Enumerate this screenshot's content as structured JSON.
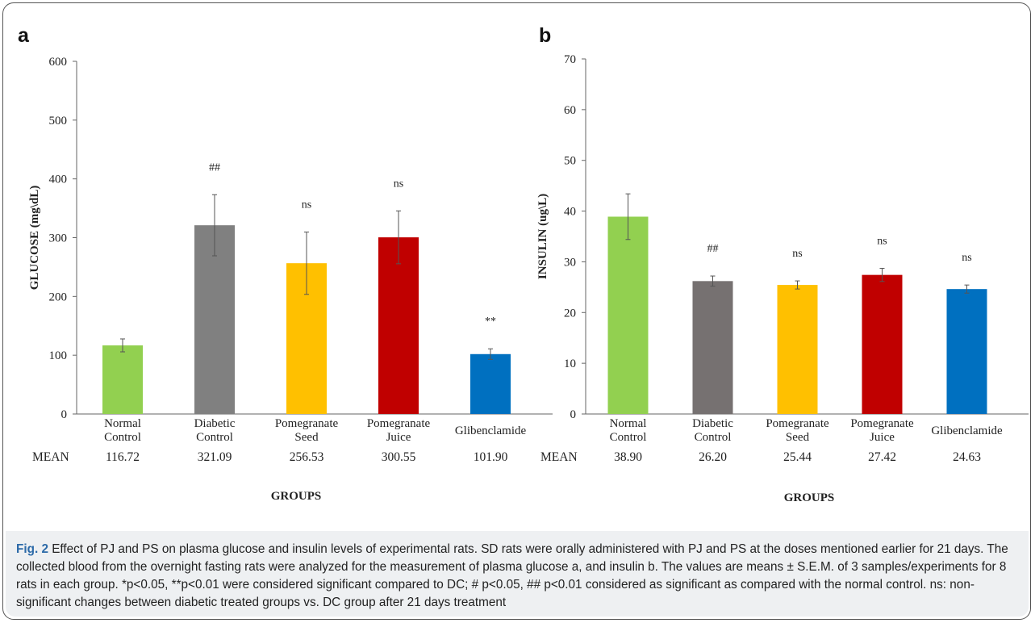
{
  "chart_data": [
    {
      "type": "bar",
      "panel": "a",
      "categories": [
        [
          "Normal",
          "Control"
        ],
        [
          "Diabetic",
          "Control"
        ],
        [
          "Pomegranate",
          "Seed"
        ],
        [
          "Pomegranate",
          "Juice"
        ],
        [
          "Glibenclamide"
        ]
      ],
      "values": [
        116.72,
        321.09,
        256.53,
        300.55,
        101.9
      ],
      "errors": [
        11,
        52,
        53,
        45,
        9
      ],
      "significance": [
        "",
        "##",
        "ns",
        "ns",
        "**"
      ],
      "colors": [
        "#92d050",
        "#808080",
        "#ffc000",
        "#c00000",
        "#0070c0"
      ],
      "mean_label": "MEAN",
      "mean_values": [
        "116.72",
        "321.09",
        "256.53",
        "300.55",
        "101.90"
      ],
      "ylabel": "GLUCOSE (mg\\dL)",
      "xlabel": "GROUPS",
      "ylim": [
        0,
        600
      ],
      "yticks": [
        0,
        100,
        200,
        300,
        400,
        500,
        600
      ],
      "grid": false
    },
    {
      "type": "bar",
      "panel": "b",
      "categories": [
        [
          "Normal",
          "Control"
        ],
        [
          "Diabetic",
          "Control"
        ],
        [
          "Pomegranate",
          "Seed"
        ],
        [
          "Pomegranate",
          "Juice"
        ],
        [
          "Glibenclamide"
        ]
      ],
      "values": [
        38.9,
        26.2,
        25.44,
        27.42,
        24.63
      ],
      "errors": [
        4.5,
        1.0,
        0.8,
        1.3,
        0.8
      ],
      "significance": [
        "",
        "##",
        "ns",
        "ns",
        "ns"
      ],
      "colors": [
        "#92d050",
        "#767171",
        "#ffc000",
        "#c00000",
        "#0070c0"
      ],
      "mean_label": "MEAN",
      "mean_values": [
        "38.90",
        "26.20",
        "25.44",
        "27.42",
        "24.63"
      ],
      "ylabel": "INSULIN (ug\\L)",
      "xlabel": "GROUPS",
      "ylim": [
        0,
        70
      ],
      "yticks": [
        0,
        10,
        20,
        30,
        40,
        50,
        60,
        70
      ],
      "grid": false
    }
  ],
  "caption": {
    "label": "Fig. 2",
    "text": "Effect of PJ and PS on plasma glucose and insulin levels of experimental rats. SD rats were orally administered with PJ and PS at the doses mentioned earlier for 21 days. The collected blood from the overnight fasting rats were analyzed for the measurement of plasma glucose a, and insulin b. The values are means ± S.E.M. of 3 samples/experiments for 8 rats in each group. *p˂0.05, **p˂0.01 were considered significant compared to DC; # p˂0.05, ## p˂0.01 considered as significant as compared with the normal control. ns: non-significant changes between diabetic treated groups vs. DC group after 21 days treatment"
  }
}
